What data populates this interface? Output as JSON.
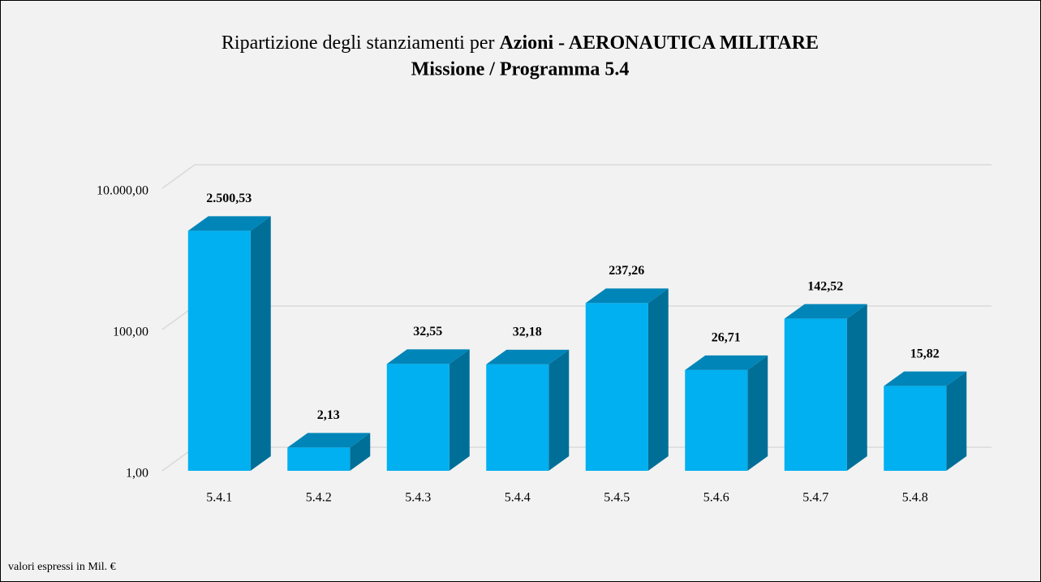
{
  "chart_data": {
    "type": "bar3d",
    "title": "Ripartizione degli stanziamenti per",
    "title_bold": "Azioni - AERONAUTICA MILITARE",
    "subtitle": "Missione / Programma 5.4",
    "note": "valori espressi in Mil. €",
    "categories": [
      "5.4.1",
      "5.4.2",
      "5.4.3",
      "5.4.4",
      "5.4.5",
      "5.4.6",
      "5.4.7",
      "5.4.8"
    ],
    "values": [
      2500.53,
      2.13,
      32.55,
      32.18,
      237.26,
      26.71,
      142.52,
      15.82
    ],
    "value_labels": [
      "2.500,53",
      "2,13",
      "32,55",
      "32,18",
      "237,26",
      "26,71",
      "142,52",
      "15,82"
    ],
    "color": "#00b0f0",
    "log_scale": true,
    "ylim": [
      1,
      10000
    ],
    "yticks": [
      {
        "value": 1,
        "label": "1,00"
      },
      {
        "value": 100,
        "label": "100,00"
      },
      {
        "value": 10000,
        "label": "10.000,00"
      }
    ],
    "grid": true
  }
}
